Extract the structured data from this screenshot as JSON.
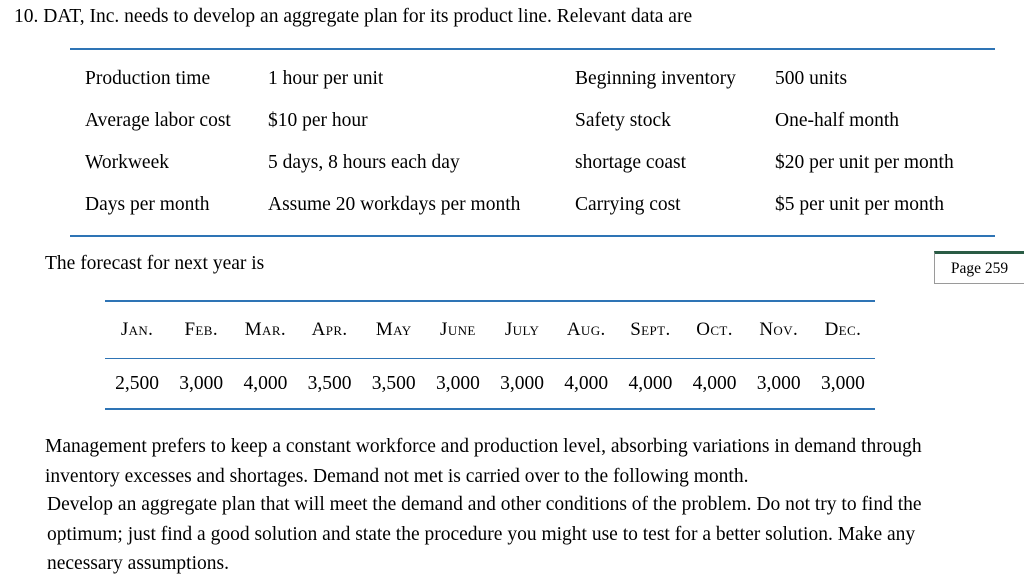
{
  "page": {
    "problem_number": "10.",
    "intro": "DAT, Inc. needs to develop an aggregate plan for its product line. Relevant data are",
    "data_table": {
      "rows": [
        {
          "label1": "Production time",
          "value1": "1 hour per unit",
          "label2": "Beginning inventory",
          "value2": "500 units"
        },
        {
          "label1": "Average labor cost",
          "value1": "$10 per hour",
          "label2": "Safety stock",
          "value2": "One-half month"
        },
        {
          "label1": "Workweek",
          "value1": "5 days, 8 hours each day",
          "label2": "shortage coast",
          "value2": "$20 per unit per month"
        },
        {
          "label1": "Days per month",
          "value1": "Assume 20 workdays per month",
          "label2": "Carrying cost",
          "value2": "$5 per unit per month"
        }
      ]
    },
    "forecast_intro": "The forecast for next year is",
    "page_badge": "Page 259",
    "forecast_table": {
      "months": [
        "Jan.",
        "Feb.",
        "Mar.",
        "Apr.",
        "May",
        "June",
        "July",
        "Aug.",
        "Sept.",
        "Oct.",
        "Nov.",
        "Dec."
      ],
      "values": [
        "2,500",
        "3,000",
        "4,000",
        "3,500",
        "3,500",
        "3,000",
        "3,000",
        "4,000",
        "4,000",
        "4,000",
        "3,000",
        "3,000"
      ]
    },
    "paragraph1": "Management prefers to keep a constant workforce and production level, absorbing variations in demand through inventory excesses and shortages. Demand not met is carried over to the following month.",
    "paragraph2": "Develop an aggregate plan that will meet the demand and other conditions of the problem. Do not try to find the optimum; just find a good solution and state the procedure you might use to test for a better solution. Make any necessary assumptions."
  },
  "colors": {
    "table_rule_blue": "#2e74b5",
    "page_badge_top_green": "#2a5c45",
    "page_badge_border_gray": "#9a9a9a"
  }
}
